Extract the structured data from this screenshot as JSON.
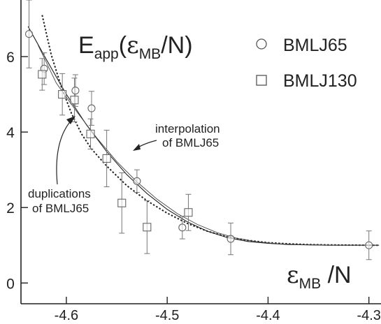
{
  "chart_data": {
    "type": "scatter",
    "title": "E",
    "title_sub": "app",
    "title_paren_open": "(",
    "title_eps": "ε",
    "title_eps_sub": "MB",
    "title_tail": "/N)",
    "xlabel_eps": "ε",
    "xlabel_sub": "MB",
    "xlabel_tail": " /N",
    "ylabel": "",
    "xlim": [
      -4.645,
      -4.288
    ],
    "ylim": [
      -0.55,
      7.5
    ],
    "x_ticks": [
      -4.6,
      -4.5,
      -4.4,
      -4.3
    ],
    "x_tick_labels": [
      "-4.6",
      "-4.5",
      "-4.4",
      "-4.3"
    ],
    "y_ticks": [
      0,
      2,
      4,
      6
    ],
    "y_tick_labels": [
      "0",
      "2",
      "4",
      "6"
    ],
    "grid": false,
    "legend_position": "top-right",
    "series": [
      {
        "name": "BMLJ65",
        "marker": "circle",
        "points": [
          {
            "x": -4.637,
            "y": 6.6,
            "err": 0.9
          },
          {
            "x": -4.622,
            "y": 5.68,
            "err": 0.42
          },
          {
            "x": -4.591,
            "y": 5.1,
            "err": 0.42
          },
          {
            "x": -4.575,
            "y": 4.63,
            "err": 0.45
          },
          {
            "x": -4.53,
            "y": 2.7,
            "err": 0.3
          },
          {
            "x": -4.485,
            "y": 1.47,
            "err": 0.3
          },
          {
            "x": -4.437,
            "y": 1.17,
            "err": 0.42
          },
          {
            "x": -4.3,
            "y": 1.0,
            "err": 0.38
          }
        ]
      },
      {
        "name": "BMLJ130",
        "marker": "square",
        "points": [
          {
            "x": -4.624,
            "y": 5.53,
            "err": 0.42
          },
          {
            "x": -4.604,
            "y": 5.0,
            "err": 0.55
          },
          {
            "x": -4.592,
            "y": 4.85,
            "err": 0.58
          },
          {
            "x": -4.576,
            "y": 3.95,
            "err": 0.4
          },
          {
            "x": -4.56,
            "y": 3.3,
            "err": 0.75
          },
          {
            "x": -4.545,
            "y": 2.12,
            "err": 0.8
          },
          {
            "x": -4.52,
            "y": 1.48,
            "err": 0.7
          },
          {
            "x": -4.479,
            "y": 1.87,
            "err": 0.48
          }
        ]
      }
    ],
    "curves": [
      {
        "name": "interpolation of BMLJ65",
        "style": "solid",
        "points": [
          [
            -4.638,
            6.8
          ],
          [
            -4.62,
            5.93
          ],
          [
            -4.6,
            5.0
          ],
          [
            -4.58,
            4.19
          ],
          [
            -4.56,
            3.48
          ],
          [
            -4.54,
            2.87
          ],
          [
            -4.52,
            2.37
          ],
          [
            -4.5,
            1.95
          ],
          [
            -4.48,
            1.62
          ],
          [
            -4.46,
            1.37
          ],
          [
            -4.44,
            1.2
          ],
          [
            -4.42,
            1.1
          ],
          [
            -4.4,
            1.05
          ],
          [
            -4.38,
            1.02
          ],
          [
            -4.36,
            1.01
          ],
          [
            -4.34,
            1.0
          ],
          [
            -4.32,
            1.0
          ],
          [
            -4.29,
            1.0
          ]
        ]
      },
      {
        "name": "duplications of BMLJ65",
        "style": "dotted",
        "points": [
          [
            -4.624,
            7.1
          ],
          [
            -4.615,
            6.05
          ],
          [
            -4.605,
            5.2
          ],
          [
            -4.595,
            4.5
          ],
          [
            -4.585,
            3.95
          ],
          [
            -4.575,
            3.55
          ],
          [
            -4.56,
            3.1
          ],
          [
            -4.54,
            2.58
          ],
          [
            -4.52,
            2.18
          ],
          [
            -4.5,
            1.85
          ],
          [
            -4.48,
            1.58
          ],
          [
            -4.46,
            1.37
          ],
          [
            -4.44,
            1.22
          ],
          [
            -4.42,
            1.13
          ],
          [
            -4.4,
            1.07
          ],
          [
            -4.38,
            1.04
          ],
          [
            -4.36,
            1.02
          ],
          [
            -4.34,
            1.01
          ],
          [
            -4.3,
            1.0
          ],
          [
            -4.29,
            1.0
          ]
        ]
      },
      {
        "name": "fit",
        "style": "thin",
        "points": [
          [
            -4.628,
            6.3
          ],
          [
            -4.61,
            5.3
          ],
          [
            -4.59,
            4.55
          ],
          [
            -4.57,
            3.85
          ],
          [
            -4.55,
            3.22
          ],
          [
            -4.53,
            2.68
          ],
          [
            -4.51,
            2.22
          ],
          [
            -4.49,
            1.84
          ],
          [
            -4.47,
            1.55
          ],
          [
            -4.45,
            1.33
          ],
          [
            -4.43,
            1.18
          ],
          [
            -4.41,
            1.09
          ],
          [
            -4.39,
            1.04
          ],
          [
            -4.37,
            1.02
          ],
          [
            -4.35,
            1.01
          ],
          [
            -4.33,
            1.0
          ],
          [
            -4.29,
            1.0
          ]
        ]
      }
    ],
    "annotations": [
      {
        "id": "interp",
        "lines": [
          "interpolation",
          "of BMLJ65"
        ]
      },
      {
        "id": "dup",
        "lines": [
          "duplications",
          "of BMLJ65"
        ]
      }
    ]
  }
}
